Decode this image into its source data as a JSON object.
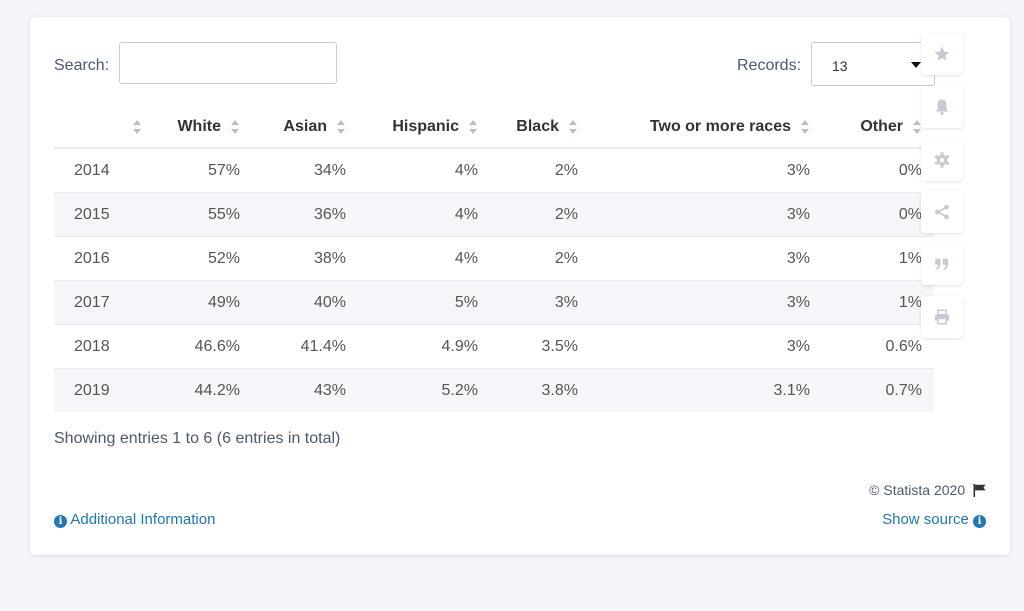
{
  "search": {
    "label": "Search:",
    "value": "",
    "placeholder": ""
  },
  "records": {
    "label": "Records:",
    "value": "13"
  },
  "table": {
    "headers": [
      "",
      "White",
      "Asian",
      "Hispanic",
      "Black",
      "Two or more races",
      "Other"
    ],
    "rows": [
      [
        "2014",
        "57%",
        "34%",
        "4%",
        "2%",
        "3%",
        "0%"
      ],
      [
        "2015",
        "55%",
        "36%",
        "4%",
        "2%",
        "3%",
        "0%"
      ],
      [
        "2016",
        "52%",
        "38%",
        "4%",
        "2%",
        "3%",
        "1%"
      ],
      [
        "2017",
        "49%",
        "40%",
        "5%",
        "3%",
        "3%",
        "1%"
      ],
      [
        "2018",
        "46.6%",
        "41.4%",
        "4.9%",
        "3.5%",
        "3%",
        "0.6%"
      ],
      [
        "2019",
        "44.2%",
        "43%",
        "5.2%",
        "3.8%",
        "3.1%",
        "0.7%"
      ]
    ]
  },
  "footer": {
    "entries": "Showing entries 1 to 6 (6 entries in total)",
    "copyright": "© Statista 2020",
    "additional_info": "Additional Information",
    "show_source": "Show source"
  },
  "sidebar_icons": [
    "star-icon",
    "bell-icon",
    "gear-icon",
    "share-icon",
    "quote-icon",
    "print-icon"
  ],
  "colors": {
    "link": "#1f78b4",
    "stripe": "#f4f6f9",
    "icon": "#c5cbd3"
  }
}
